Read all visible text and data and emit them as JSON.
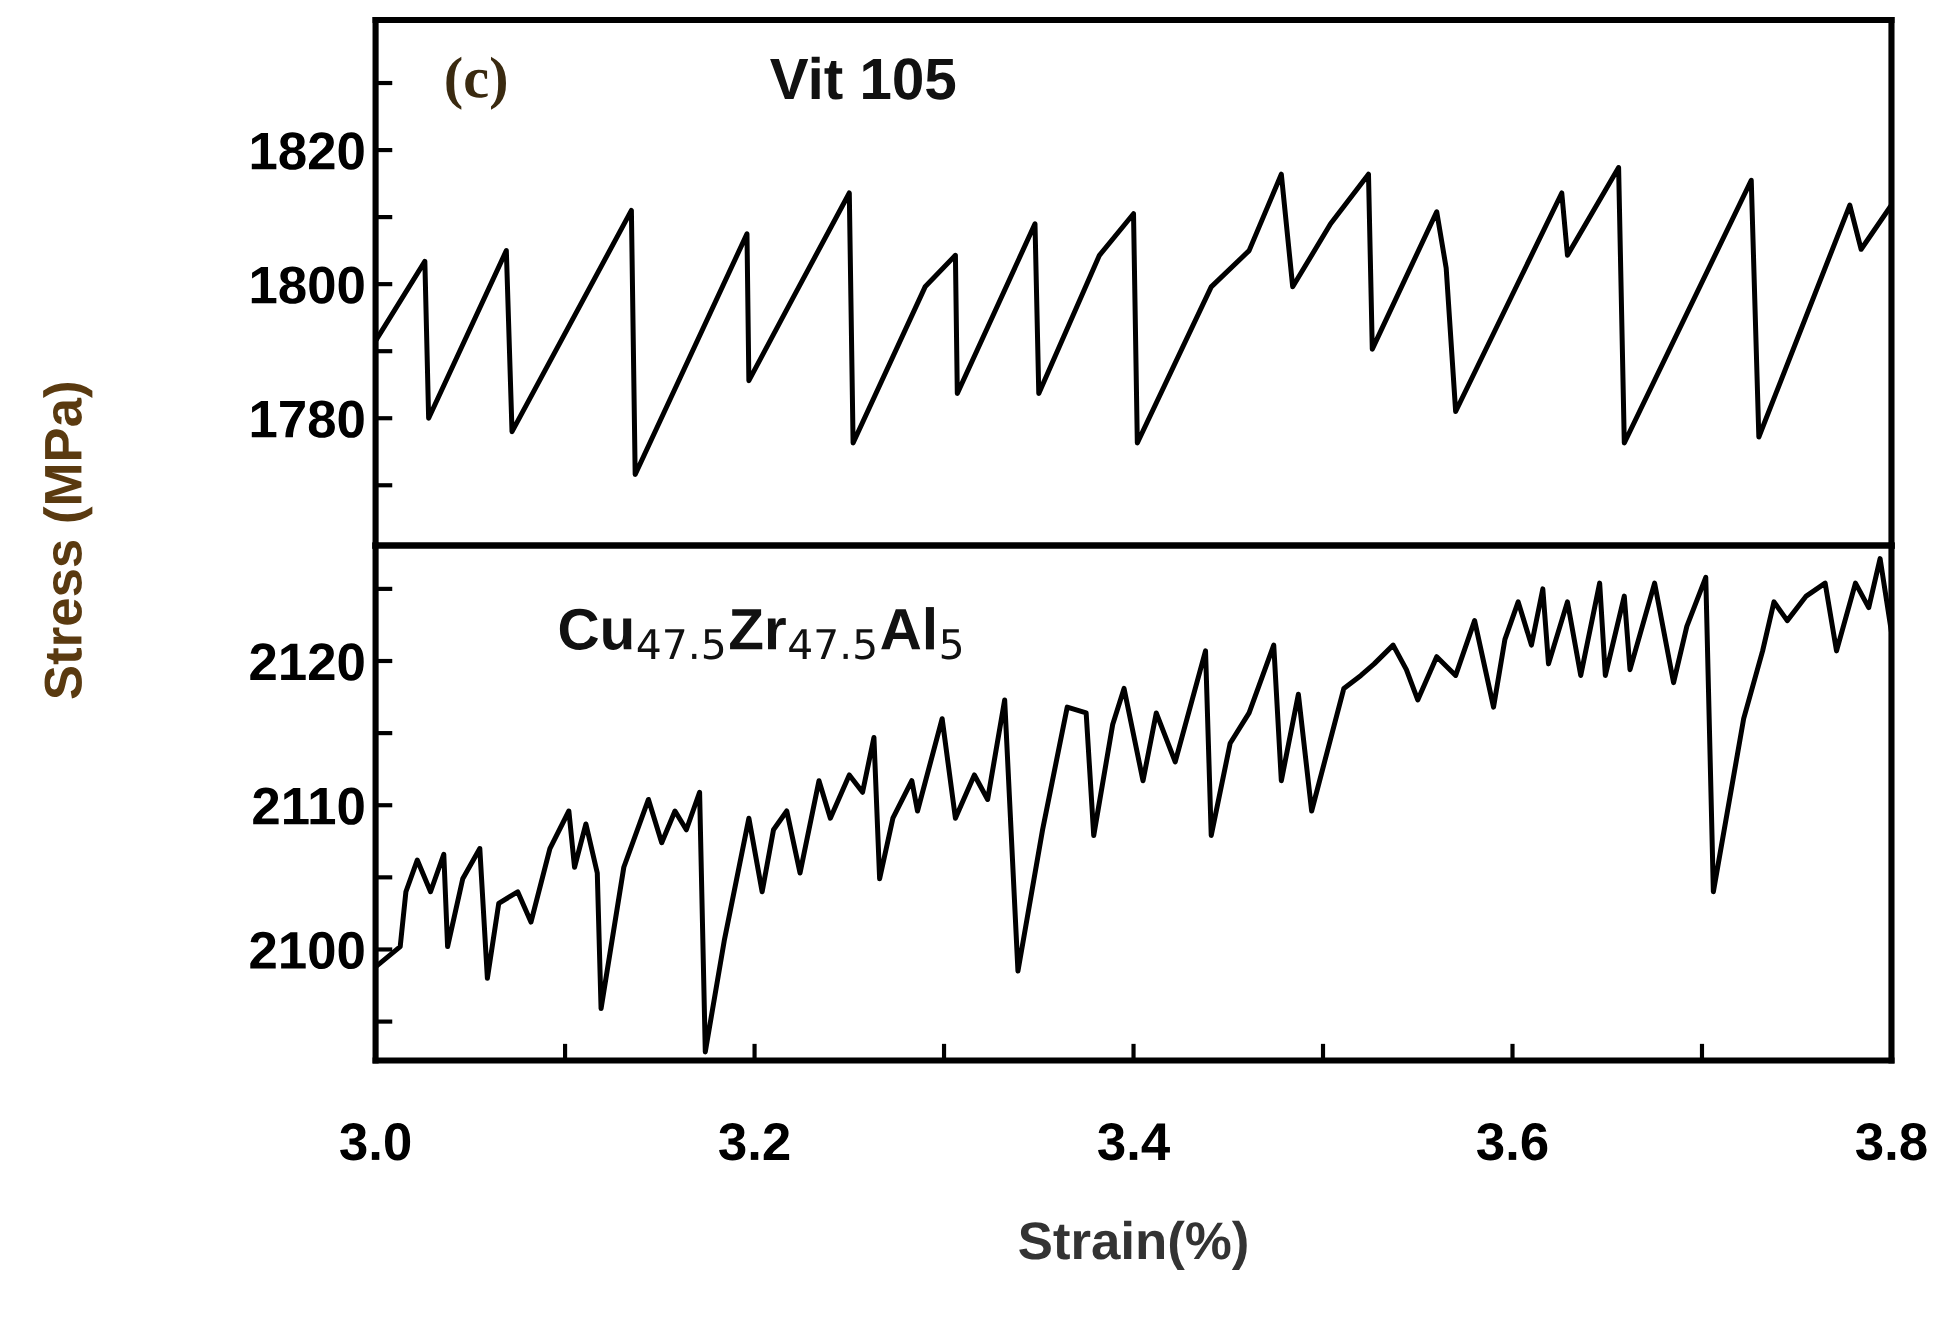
{
  "chart_data": [
    {
      "type": "line",
      "ylabel": "Stress (MPa)",
      "annotations": [
        "(c)",
        "Vit 105"
      ],
      "tick_labels": "y",
      "xlim": [
        3.0,
        3.8
      ],
      "ylim": [
        1761,
        1839.4
      ],
      "yticks": [
        {
          "value": 1770,
          "label": null
        },
        1780,
        {
          "value": 1790,
          "label": null
        },
        1800,
        {
          "value": 1810,
          "label": null
        },
        1820,
        {
          "value": 1830,
          "label": null
        }
      ],
      "grid": false,
      "marker": "none",
      "line_style": "solid",
      "series": [
        {
          "color": "#000000",
          "x": [
            3.001,
            3.026,
            3.028,
            3.069,
            3.072,
            3.135,
            3.137,
            3.196,
            3.197,
            3.22,
            3.25,
            3.252,
            3.29,
            3.306,
            3.307,
            3.348,
            3.35,
            3.382,
            3.4,
            3.402,
            3.441,
            3.461,
            3.478,
            3.484,
            3.504,
            3.524,
            3.526,
            3.56,
            3.565,
            3.57,
            3.626,
            3.629,
            3.656,
            3.659,
            3.726,
            3.73,
            3.778,
            3.784,
            3.8
          ],
          "values": [
            1792,
            1803.4,
            1780,
            1805,
            1778,
            1811,
            1771.6,
            1807.5,
            1785.6,
            1797.8,
            1813.6,
            1776.3,
            1799.6,
            1804.3,
            1783.7,
            1809,
            1783.7,
            1804.3,
            1810.5,
            1776.3,
            1799.6,
            1805,
            1816.4,
            1799.6,
            1809,
            1816.4,
            1790.3,
            1810.8,
            1802.4,
            1781,
            1813.6,
            1804.3,
            1817.4,
            1776.3,
            1815.5,
            1777.2,
            1811.8,
            1805.2,
            1811.8
          ]
        }
      ]
    },
    {
      "type": "line",
      "xlabel": "Strain(%)",
      "annotations": [
        "Cu$_{47.5}$Zr$_{47.5}$Al$_{5}$"
      ],
      "xlim": [
        3.0,
        3.8
      ],
      "ylim": [
        2092.3,
        2128
      ],
      "xticks": [
        {
          "value": 3.0,
          "label": "3.0"
        },
        {
          "value": 3.1,
          "label": null
        },
        {
          "value": 3.2,
          "label": "3.2"
        },
        {
          "value": 3.3,
          "label": null
        },
        {
          "value": 3.4,
          "label": "3.4"
        },
        {
          "value": 3.5,
          "label": null
        },
        {
          "value": 3.6,
          "label": "3.6"
        },
        {
          "value": 3.7,
          "label": null
        },
        {
          "value": 3.8,
          "label": "3.8"
        }
      ],
      "yticks": [
        {
          "value": 2095,
          "label": null
        },
        2100,
        {
          "value": 2105,
          "label": null
        },
        2110,
        {
          "value": 2115,
          "label": null
        },
        2120,
        {
          "value": 2125,
          "label": null
        }
      ],
      "grid": false,
      "marker": "none",
      "line_style": "solid",
      "series": [
        {
          "color": "#000000",
          "x": [
            3.001,
            3.013,
            3.016,
            3.022,
            3.029,
            3.036,
            3.038,
            3.046,
            3.055,
            3.059,
            3.065,
            3.075,
            3.082,
            3.092,
            3.102,
            3.105,
            3.111,
            3.117,
            3.119,
            3.131,
            3.144,
            3.151,
            3.158,
            3.164,
            3.171,
            3.174,
            3.184,
            3.197,
            3.204,
            3.21,
            3.217,
            3.224,
            3.234,
            3.24,
            3.25,
            3.257,
            3.263,
            3.266,
            3.273,
            3.283,
            3.286,
            3.299,
            3.306,
            3.316,
            3.323,
            3.332,
            3.339,
            3.352,
            3.365,
            3.375,
            3.379,
            3.389,
            3.395,
            3.405,
            3.412,
            3.422,
            3.438,
            3.441,
            3.451,
            3.461,
            3.474,
            3.478,
            3.487,
            3.494,
            3.511,
            3.52,
            3.527,
            3.537,
            3.544,
            3.55,
            3.56,
            3.57,
            3.58,
            3.59,
            3.596,
            3.603,
            3.61,
            3.616,
            3.619,
            3.629,
            3.636,
            3.646,
            3.649,
            3.659,
            3.662,
            3.675,
            3.685,
            3.692,
            3.702,
            3.706,
            3.722,
            3.732,
            3.738,
            3.745,
            3.755,
            3.765,
            3.771,
            3.781,
            3.788,
            3.794,
            3.8
          ],
          "values": [
            2098.9,
            2100.2,
            2104,
            2106.2,
            2104,
            2106.6,
            2100.2,
            2104.9,
            2107,
            2098,
            2103.2,
            2104,
            2101.9,
            2107,
            2109.6,
            2105.7,
            2108.7,
            2105.3,
            2095.9,
            2105.7,
            2110.4,
            2107.4,
            2109.6,
            2108.3,
            2110.9,
            2092.9,
            2100.6,
            2109.1,
            2104,
            2108.3,
            2109.6,
            2105.3,
            2111.7,
            2109.1,
            2112.1,
            2110.9,
            2114.7,
            2104.9,
            2109.1,
            2111.7,
            2109.6,
            2116,
            2109.1,
            2112.1,
            2110.4,
            2117.3,
            2098.5,
            2108.3,
            2116.8,
            2116.4,
            2107.9,
            2115.6,
            2118.1,
            2111.7,
            2116.4,
            2113,
            2120.7,
            2107.9,
            2114.3,
            2116.4,
            2121.1,
            2111.7,
            2117.7,
            2109.6,
            2118.1,
            2119,
            2119.8,
            2121.1,
            2119.4,
            2117.3,
            2120.3,
            2119,
            2122.8,
            2116.8,
            2121.5,
            2124.1,
            2121.1,
            2125,
            2119.8,
            2124.1,
            2119,
            2125.4,
            2119,
            2124.5,
            2119.4,
            2125.4,
            2118.5,
            2122.4,
            2125.8,
            2104,
            2116,
            2120.7,
            2124.1,
            2122.8,
            2124.5,
            2125.4,
            2120.7,
            2125.4,
            2123.7,
            2127.1,
            2122
          ]
        }
      ]
    }
  ]
}
